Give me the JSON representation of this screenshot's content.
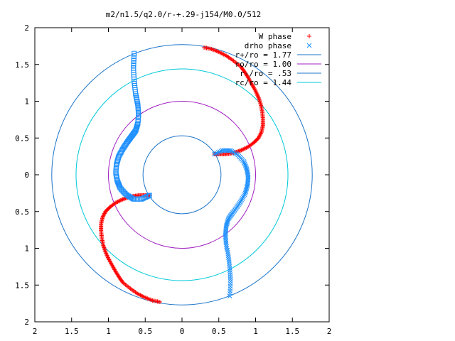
{
  "chart_data": {
    "type": "scatter",
    "title": "m2/n1.5/q2.0/r-+.29-j154/M0.0/512",
    "xlim": [
      -2,
      2
    ],
    "ylim": [
      -2,
      2
    ],
    "x_tick_values": [
      -2,
      -1.5,
      -1,
      -0.5,
      0,
      0.5,
      1,
      1.5,
      2
    ],
    "x_tick_labels": [
      "2",
      "1.5",
      "1",
      "0.5",
      "0",
      "0.5",
      "1",
      "1.5",
      "2"
    ],
    "y_tick_values": [
      2,
      1.5,
      1,
      0.5,
      0,
      -0.5,
      -1,
      -1.5,
      -2
    ],
    "y_tick_labels": [
      "2",
      "1.5",
      "1",
      "0.5",
      "0",
      "0.5",
      "1",
      "1.5",
      "2"
    ],
    "grid": false,
    "legend_position": "top-right",
    "colors": {
      "w_phase": "#ff0000",
      "drho_phase": "#1e90ff",
      "r_plus": "#1c74c9",
      "r_o": "#a020c0",
      "r_minus": "#1c74c9",
      "r_c": "#00c8d8"
    },
    "series": [
      {
        "name": "W phase",
        "kind": "points",
        "marker": "plus",
        "branch": "A",
        "x": [
          0.3,
          0.4,
          0.5,
          0.6,
          0.7,
          0.8,
          0.85,
          0.9,
          0.95,
          1.0,
          1.04,
          1.07,
          1.09,
          1.1,
          1.1,
          1.08,
          1.04,
          0.98,
          0.9,
          0.82,
          0.74,
          0.66,
          0.58,
          0.5,
          0.44
        ],
        "y": [
          1.73,
          1.71,
          1.67,
          1.62,
          1.55,
          1.47,
          1.4,
          1.32,
          1.23,
          1.14,
          1.05,
          0.96,
          0.86,
          0.76,
          0.67,
          0.58,
          0.5,
          0.44,
          0.38,
          0.34,
          0.31,
          0.29,
          0.28,
          0.28,
          0.28
        ]
      },
      {
        "name": "W phase",
        "kind": "points",
        "marker": "plus",
        "branch": "B",
        "x": [
          -0.3,
          -0.4,
          -0.5,
          -0.6,
          -0.7,
          -0.8,
          -0.85,
          -0.9,
          -0.95,
          -1.0,
          -1.04,
          -1.07,
          -1.09,
          -1.1,
          -1.1,
          -1.08,
          -1.04,
          -0.98,
          -0.9,
          -0.82,
          -0.74,
          -0.66,
          -0.58,
          -0.5,
          -0.44
        ],
        "y": [
          -1.73,
          -1.71,
          -1.67,
          -1.62,
          -1.55,
          -1.47,
          -1.4,
          -1.32,
          -1.23,
          -1.14,
          -1.05,
          -0.96,
          -0.86,
          -0.76,
          -0.67,
          -0.58,
          -0.5,
          -0.44,
          -0.38,
          -0.34,
          -0.31,
          -0.29,
          -0.28,
          -0.28,
          -0.28
        ]
      },
      {
        "name": "drho phase",
        "kind": "points",
        "marker": "cross",
        "branch": "A",
        "x": [
          0.44,
          0.55,
          0.66,
          0.76,
          0.84,
          0.88,
          0.9,
          0.89,
          0.86,
          0.8,
          0.74,
          0.68,
          0.63,
          0.6,
          0.59,
          0.6,
          0.63,
          0.65,
          0.66,
          0.65
        ],
        "y": [
          0.28,
          0.33,
          0.33,
          0.27,
          0.18,
          0.08,
          -0.03,
          -0.14,
          -0.25,
          -0.36,
          -0.45,
          -0.53,
          -0.6,
          -0.7,
          -0.82,
          -0.95,
          -1.1,
          -1.27,
          -1.45,
          -1.65
        ]
      },
      {
        "name": "drho phase",
        "kind": "points",
        "marker": "square",
        "branch": "B",
        "x": [
          -0.44,
          -0.55,
          -0.66,
          -0.76,
          -0.84,
          -0.88,
          -0.9,
          -0.89,
          -0.86,
          -0.8,
          -0.74,
          -0.68,
          -0.63,
          -0.6,
          -0.59,
          -0.6,
          -0.63,
          -0.65,
          -0.66,
          -0.65
        ],
        "y": [
          -0.28,
          -0.33,
          -0.33,
          -0.27,
          -0.18,
          -0.08,
          0.03,
          0.14,
          0.25,
          0.36,
          0.45,
          0.53,
          0.6,
          0.7,
          0.82,
          0.95,
          1.1,
          1.27,
          1.45,
          1.65
        ]
      },
      {
        "name": "r+/ro = 1.77",
        "kind": "circle",
        "radius": 1.77
      },
      {
        "name": "ro/ro = 1.00",
        "kind": "circle",
        "radius": 1.0
      },
      {
        "name": "r-/ro = .53",
        "kind": "circle",
        "radius": 0.53
      },
      {
        "name": "rc/ro = 1.44",
        "kind": "circle",
        "radius": 1.44
      }
    ]
  }
}
